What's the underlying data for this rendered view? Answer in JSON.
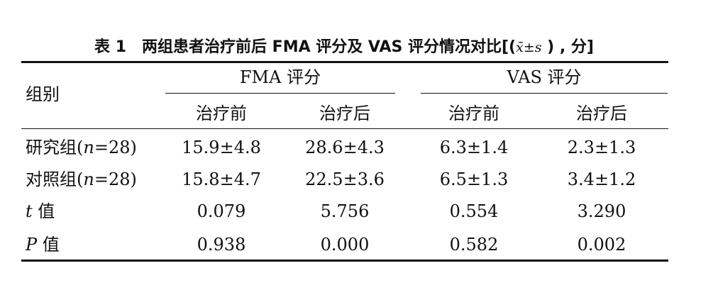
{
  "caption": {
    "number": "表 1",
    "title": "两组患者治疗前后 FMA 评分及 VAS 评分情况对比[(",
    "math": "x̄±s",
    "tail": " ) , 分]"
  },
  "header": {
    "group": "组别",
    "fma": "FMA 评分",
    "vas": "VAS 评分",
    "sub": [
      "治疗前",
      "治疗后",
      "治疗前",
      "治疗后"
    ]
  },
  "rows": [
    {
      "label_pre": "研究组(",
      "label_ital": "n",
      "label_post": "=28)",
      "values": [
        "15.9±4.8",
        "28.6±4.3",
        "6.3±1.4",
        "2.3±1.3"
      ]
    },
    {
      "label_pre": "对照组(",
      "label_ital": "n",
      "label_post": "=28)",
      "values": [
        "15.8±4.7",
        "22.5±3.6",
        "6.5±1.3",
        "3.4±1.2"
      ]
    },
    {
      "label_pre": "",
      "label_ital": "t",
      "label_post": " 值",
      "values": [
        "0.079",
        "5.756",
        "0.554",
        "3.290"
      ]
    },
    {
      "label_pre": "",
      "label_ital": "P",
      "label_post": " 值",
      "values": [
        "0.938",
        "0.000",
        "0.582",
        "0.002"
      ]
    }
  ]
}
